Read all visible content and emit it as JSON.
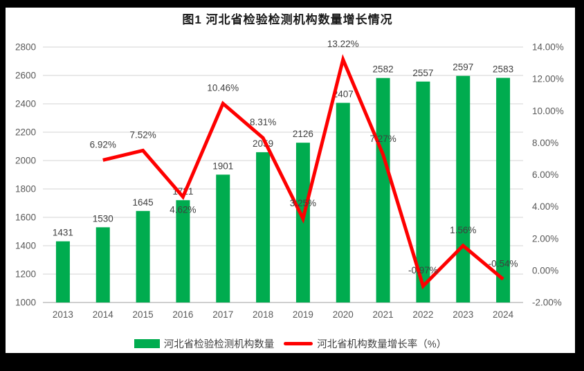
{
  "title": "图1  河北省检验检测机构数量增长情况",
  "legend": {
    "bars": "河北省检验检测机构数量",
    "line": "河北省机构数量增长率（%）"
  },
  "colors": {
    "bar": "#00AC4F",
    "line": "#FE0000",
    "grid": "#DCDCDC",
    "axis_line": "#CFCFCF",
    "axis_text": "#595959",
    "label_text": "#3F3F3F",
    "frame": "#000000",
    "background": "#FFFFFF"
  },
  "chart_data": {
    "type": "combo-bar-line",
    "title": "图1  河北省检验检测机构数量增长情况",
    "categories": [
      "2013",
      "2014",
      "2015",
      "2016",
      "2017",
      "2018",
      "2019",
      "2020",
      "2021",
      "2022",
      "2023",
      "2024"
    ],
    "series": [
      {
        "name": "河北省检验检测机构数量",
        "type": "bar",
        "axis": "left",
        "values": [
          1431,
          1530,
          1645,
          1721,
          1901,
          2059,
          2126,
          2407,
          2582,
          2557,
          2597,
          2583
        ]
      },
      {
        "name": "河北省机构数量增长率（%）",
        "type": "line",
        "axis": "right",
        "values": [
          null,
          6.92,
          7.52,
          4.62,
          10.46,
          8.31,
          3.25,
          13.22,
          7.27,
          -0.97,
          1.56,
          -0.54
        ]
      }
    ],
    "bar_labels": [
      "1431",
      "1530",
      "1645",
      "1721",
      "1901",
      "2059",
      "2126",
      "2407",
      "2582",
      "2557",
      "2597",
      "2583"
    ],
    "line_labels": [
      null,
      "6.92%",
      "7.52%",
      "4.62%",
      "10.46%",
      "8.31%",
      "3.25%",
      "13.22%",
      "7.27%",
      "-0.97%",
      "1.56%",
      "-0.54%"
    ],
    "left_axis": {
      "min": 1000,
      "max": 2800,
      "ticks": [
        "2800",
        "2600",
        "2400",
        "2200",
        "2000",
        "1800",
        "1600",
        "1400",
        "1200",
        "1000"
      ]
    },
    "right_axis": {
      "min": -2,
      "max": 14,
      "ticks": [
        "14.00%",
        "12.00%",
        "10.00%",
        "8.00%",
        "6.00%",
        "4.00%",
        "2.00%",
        "0.00%",
        "-2.00%"
      ]
    },
    "grid": true,
    "legend_position": "bottom",
    "line_label_below": [
      "2016"
    ]
  }
}
